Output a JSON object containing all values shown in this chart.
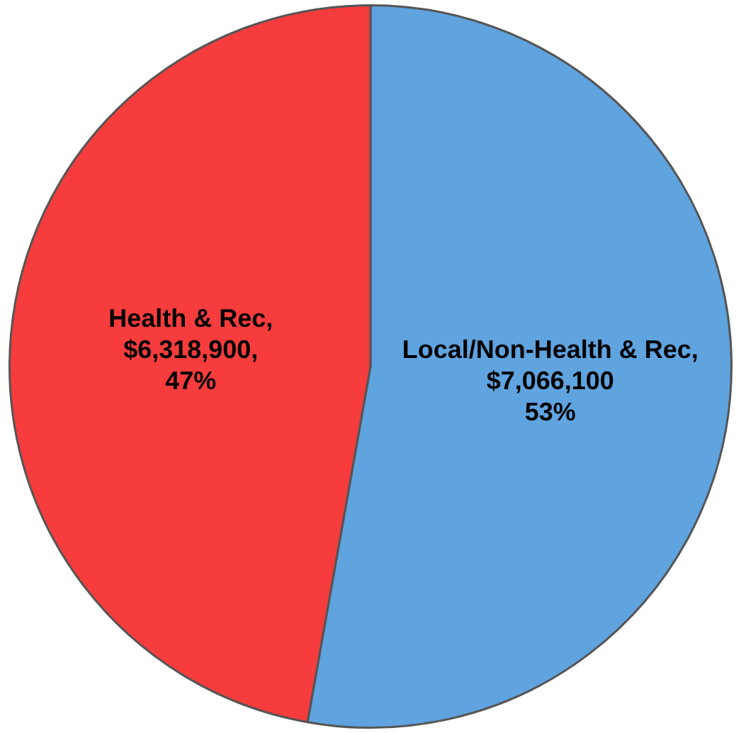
{
  "chart_data": {
    "type": "pie",
    "categories": [
      "Local/Non-Health & Rec",
      "Health & Rec"
    ],
    "values": [
      7066100,
      6318900
    ],
    "colors": [
      "#5fa3df",
      "#f63c3c"
    ],
    "value_labels": [
      ",\n$7,066,100\n53%",
      ",\n$6,318,900,\n47%"
    ],
    "legend": false
  }
}
